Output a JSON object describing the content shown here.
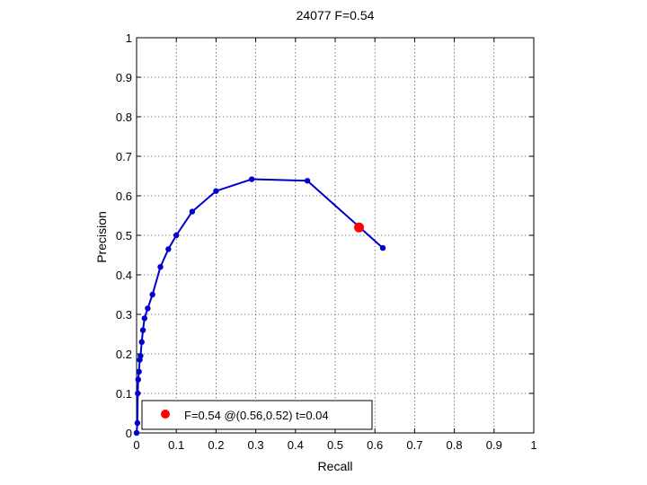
{
  "chart_data": {
    "type": "line",
    "title": "24077 F=0.54",
    "xlabel": "Recall",
    "ylabel": "Precision",
    "xlim": [
      0,
      1
    ],
    "ylim": [
      0,
      1
    ],
    "xticks": [
      0,
      0.1,
      0.2,
      0.3,
      0.4,
      0.5,
      0.6,
      0.7,
      0.8,
      0.9,
      1
    ],
    "yticks": [
      0,
      0.1,
      0.2,
      0.3,
      0.4,
      0.5,
      0.6,
      0.7,
      0.8,
      0.9,
      1
    ],
    "xtick_labels": [
      "0",
      "0.1",
      "0.2",
      "0.3",
      "0.4",
      "0.5",
      "0.6",
      "0.7",
      "0.8",
      "0.9",
      "1"
    ],
    "ytick_labels": [
      "0",
      "0.1",
      "0.2",
      "0.3",
      "0.4",
      "0.5",
      "0.6",
      "0.7",
      "0.8",
      "0.9",
      "1"
    ],
    "grid": true,
    "grid_style": "dotted",
    "series": [
      {
        "color": "#0000cc",
        "marker": "dot",
        "x": [
          0.0,
          0.002,
          0.003,
          0.004,
          0.006,
          0.008,
          0.01,
          0.013,
          0.016,
          0.02,
          0.028,
          0.04,
          0.06,
          0.08,
          0.1,
          0.14,
          0.2,
          0.29,
          0.43,
          0.62
        ],
        "y": [
          0.0,
          0.025,
          0.1,
          0.135,
          0.155,
          0.185,
          0.195,
          0.23,
          0.26,
          0.29,
          0.315,
          0.35,
          0.42,
          0.465,
          0.5,
          0.56,
          0.612,
          0.642,
          0.638,
          0.468
        ]
      }
    ],
    "highlight_point": {
      "x": 0.56,
      "y": 0.52,
      "color": "#ff0000"
    },
    "legend": {
      "position": "bottom-left",
      "entries": [
        {
          "label": "F=0.54 @(0.56,0.52) t=0.04",
          "color": "#ff0000"
        }
      ]
    }
  }
}
